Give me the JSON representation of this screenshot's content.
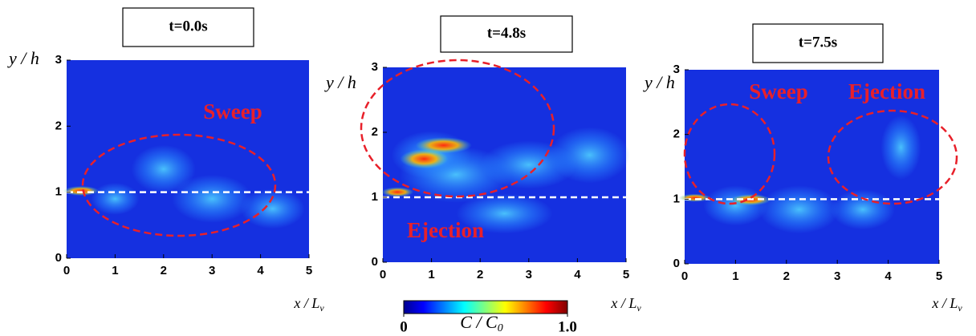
{
  "chart_data": [
    {
      "type": "heatmap",
      "title": "t=0.0s",
      "xlabel": {
        "main": "x / L",
        "sub": "v"
      },
      "ylabel": "y / h",
      "xlim": [
        0,
        5
      ],
      "ylim": [
        0,
        3
      ],
      "xticks": [
        0,
        1,
        2,
        3,
        4,
        5
      ],
      "yticks": [
        0,
        1,
        2,
        3
      ],
      "hline": 1,
      "annotations": [
        "Sweep"
      ]
    },
    {
      "type": "heatmap",
      "title": "t=4.8s",
      "xlabel": {
        "main": "x / L",
        "sub": "v"
      },
      "ylabel": "y / h",
      "xlim": [
        0,
        5
      ],
      "ylim": [
        0,
        3
      ],
      "xticks": [
        0,
        1,
        2,
        3,
        4,
        5
      ],
      "yticks": [
        0,
        1,
        2,
        3
      ],
      "hline": 1,
      "annotations": [
        "Ejection"
      ]
    },
    {
      "type": "heatmap",
      "title": "t=7.5s",
      "xlabel": {
        "main": "x / L",
        "sub": "v"
      },
      "ylabel": "y / h",
      "xlim": [
        0,
        5
      ],
      "ylim": [
        0,
        3
      ],
      "xticks": [
        0,
        1,
        2,
        3,
        4,
        5
      ],
      "yticks": [
        0,
        1,
        2,
        3
      ],
      "hline": 1,
      "annotations": [
        "Sweep",
        "Ejection"
      ]
    }
  ],
  "colorbar": {
    "label": {
      "main": "C / C",
      "sub": "0"
    },
    "lim": [
      0,
      1
    ],
    "ticks": [
      0,
      {
        "value": 1,
        "label": "1.0"
      }
    ]
  }
}
